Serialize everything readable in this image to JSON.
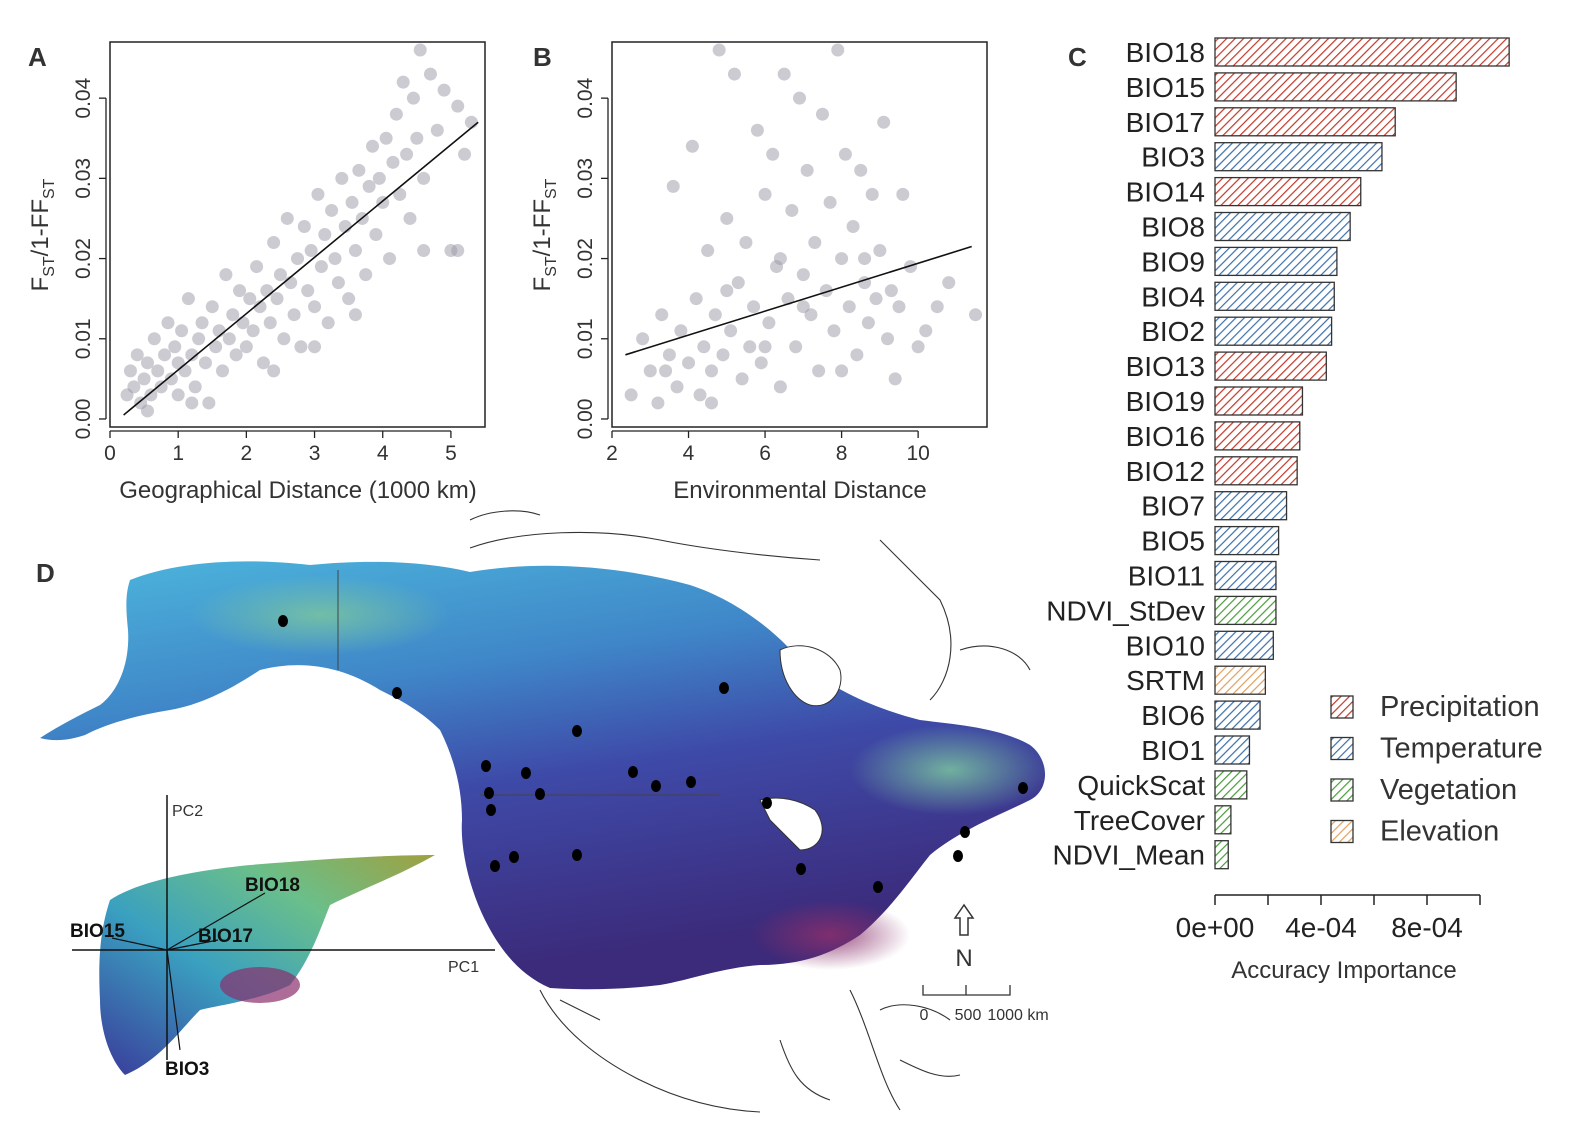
{
  "panel_labels": {
    "a": "A",
    "b": "B",
    "c": "C",
    "d": "D"
  },
  "colors": {
    "precipitation": "#c0392b",
    "temperature": "#3d6fa8",
    "vegetation": "#4a9a3a",
    "elevation": "#e0a060",
    "points": "#9a98a6",
    "map_cool": "#4aa8d8",
    "map_mid": "#3a4fa0",
    "map_warm": "#7a3070"
  },
  "chart_data": [
    {
      "type": "scatter",
      "xlabel": "Geographical Distance (1000 km)",
      "ylabel_main": "F",
      "ylabel_sub": "ST",
      "ylabel_mid": "/1-F",
      "xlim": [
        0,
        5.5
      ],
      "ylim": [
        -0.001,
        0.047
      ],
      "xticks": [
        0,
        1,
        2,
        3,
        4,
        5
      ],
      "yticks": [
        0.0,
        0.01,
        0.02,
        0.03,
        0.04
      ],
      "ytick_labels": [
        "0.00",
        "0.01",
        "0.02",
        "0.03",
        "0.04"
      ],
      "fit": {
        "x": [
          0.2,
          5.4
        ],
        "y": [
          0.0005,
          0.037
        ]
      },
      "points": [
        [
          0.25,
          0.003
        ],
        [
          0.3,
          0.006
        ],
        [
          0.35,
          0.004
        ],
        [
          0.4,
          0.008
        ],
        [
          0.45,
          0.002
        ],
        [
          0.5,
          0.005
        ],
        [
          0.55,
          0.007
        ],
        [
          0.6,
          0.003
        ],
        [
          0.65,
          0.01
        ],
        [
          0.7,
          0.006
        ],
        [
          0.75,
          0.004
        ],
        [
          0.8,
          0.008
        ],
        [
          0.85,
          0.012
        ],
        [
          0.9,
          0.005
        ],
        [
          0.95,
          0.009
        ],
        [
          1.0,
          0.007
        ],
        [
          1.0,
          0.003
        ],
        [
          1.05,
          0.011
        ],
        [
          1.1,
          0.006
        ],
        [
          1.15,
          0.015
        ],
        [
          1.2,
          0.008
        ],
        [
          1.25,
          0.004
        ],
        [
          1.3,
          0.01
        ],
        [
          1.35,
          0.012
        ],
        [
          1.4,
          0.007
        ],
        [
          1.45,
          0.002
        ],
        [
          1.5,
          0.014
        ],
        [
          1.55,
          0.009
        ],
        [
          1.6,
          0.011
        ],
        [
          1.65,
          0.006
        ],
        [
          1.7,
          0.018
        ],
        [
          1.75,
          0.01
        ],
        [
          1.8,
          0.013
        ],
        [
          1.85,
          0.008
        ],
        [
          1.9,
          0.016
        ],
        [
          1.95,
          0.012
        ],
        [
          2.0,
          0.009
        ],
        [
          2.05,
          0.015
        ],
        [
          2.1,
          0.011
        ],
        [
          2.15,
          0.019
        ],
        [
          2.2,
          0.014
        ],
        [
          2.25,
          0.007
        ],
        [
          2.3,
          0.016
        ],
        [
          2.35,
          0.012
        ],
        [
          2.4,
          0.022
        ],
        [
          2.45,
          0.015
        ],
        [
          2.5,
          0.018
        ],
        [
          2.55,
          0.01
        ],
        [
          2.6,
          0.025
        ],
        [
          2.65,
          0.017
        ],
        [
          2.7,
          0.013
        ],
        [
          2.75,
          0.02
        ],
        [
          2.8,
          0.009
        ],
        [
          2.85,
          0.024
        ],
        [
          2.9,
          0.016
        ],
        [
          2.95,
          0.021
        ],
        [
          3.0,
          0.014
        ],
        [
          3.05,
          0.028
        ],
        [
          3.1,
          0.019
        ],
        [
          3.15,
          0.023
        ],
        [
          3.2,
          0.012
        ],
        [
          3.25,
          0.026
        ],
        [
          3.3,
          0.02
        ],
        [
          3.35,
          0.017
        ],
        [
          3.4,
          0.03
        ],
        [
          3.45,
          0.024
        ],
        [
          3.5,
          0.015
        ],
        [
          3.55,
          0.027
        ],
        [
          3.6,
          0.021
        ],
        [
          3.65,
          0.031
        ],
        [
          3.7,
          0.025
        ],
        [
          3.75,
          0.018
        ],
        [
          3.8,
          0.029
        ],
        [
          3.85,
          0.034
        ],
        [
          3.9,
          0.023
        ],
        [
          3.95,
          0.03
        ],
        [
          4.0,
          0.027
        ],
        [
          4.05,
          0.035
        ],
        [
          4.1,
          0.02
        ],
        [
          4.15,
          0.032
        ],
        [
          4.2,
          0.038
        ],
        [
          4.25,
          0.028
        ],
        [
          4.3,
          0.042
        ],
        [
          4.35,
          0.033
        ],
        [
          4.4,
          0.025
        ],
        [
          4.45,
          0.04
        ],
        [
          4.5,
          0.035
        ],
        [
          4.55,
          0.046
        ],
        [
          4.6,
          0.03
        ],
        [
          4.7,
          0.043
        ],
        [
          4.8,
          0.036
        ],
        [
          4.9,
          0.041
        ],
        [
          5.0,
          0.021
        ],
        [
          5.1,
          0.039
        ],
        [
          5.2,
          0.033
        ],
        [
          5.3,
          0.037
        ],
        [
          0.55,
          0.001
        ],
        [
          1.2,
          0.002
        ],
        [
          2.4,
          0.006
        ],
        [
          3.0,
          0.009
        ],
        [
          3.6,
          0.013
        ],
        [
          4.6,
          0.021
        ],
        [
          5.1,
          0.021
        ]
      ]
    },
    {
      "type": "scatter",
      "xlabel": "Environmental Distance",
      "ylabel_main": "F",
      "ylabel_sub": "ST",
      "ylabel_mid": "/1-F",
      "xlim": [
        2,
        11.8
      ],
      "ylim": [
        -0.001,
        0.047
      ],
      "xticks": [
        2,
        4,
        6,
        8,
        10
      ],
      "yticks": [
        0.0,
        0.01,
        0.02,
        0.03,
        0.04
      ],
      "ytick_labels": [
        "0.00",
        "0.01",
        "0.02",
        "0.03",
        "0.04"
      ],
      "fit": {
        "x": [
          2.35,
          11.4
        ],
        "y": [
          0.008,
          0.0215
        ]
      },
      "points": [
        [
          2.5,
          0.003
        ],
        [
          2.8,
          0.01
        ],
        [
          3.0,
          0.006
        ],
        [
          3.2,
          0.002
        ],
        [
          3.3,
          0.013
        ],
        [
          3.5,
          0.008
        ],
        [
          3.6,
          0.029
        ],
        [
          3.7,
          0.004
        ],
        [
          3.8,
          0.011
        ],
        [
          4.0,
          0.007
        ],
        [
          4.1,
          0.034
        ],
        [
          4.2,
          0.015
        ],
        [
          4.3,
          0.003
        ],
        [
          4.4,
          0.009
        ],
        [
          4.5,
          0.021
        ],
        [
          4.6,
          0.006
        ],
        [
          4.7,
          0.013
        ],
        [
          4.8,
          0.046
        ],
        [
          4.9,
          0.008
        ],
        [
          5.0,
          0.025
        ],
        [
          5.1,
          0.011
        ],
        [
          5.2,
          0.043
        ],
        [
          5.3,
          0.017
        ],
        [
          5.4,
          0.005
        ],
        [
          5.5,
          0.022
        ],
        [
          5.6,
          0.009
        ],
        [
          5.7,
          0.014
        ],
        [
          5.8,
          0.036
        ],
        [
          5.9,
          0.007
        ],
        [
          6.0,
          0.028
        ],
        [
          6.1,
          0.012
        ],
        [
          6.2,
          0.033
        ],
        [
          6.3,
          0.019
        ],
        [
          6.4,
          0.004
        ],
        [
          6.5,
          0.043
        ],
        [
          6.6,
          0.015
        ],
        [
          6.7,
          0.026
        ],
        [
          6.8,
          0.009
        ],
        [
          6.9,
          0.04
        ],
        [
          7.0,
          0.018
        ],
        [
          7.1,
          0.031
        ],
        [
          7.2,
          0.013
        ],
        [
          7.3,
          0.022
        ],
        [
          7.4,
          0.006
        ],
        [
          7.5,
          0.038
        ],
        [
          7.6,
          0.016
        ],
        [
          7.7,
          0.027
        ],
        [
          7.8,
          0.011
        ],
        [
          7.9,
          0.046
        ],
        [
          8.0,
          0.02
        ],
        [
          8.1,
          0.033
        ],
        [
          8.2,
          0.014
        ],
        [
          8.3,
          0.024
        ],
        [
          8.4,
          0.008
        ],
        [
          8.5,
          0.031
        ],
        [
          8.6,
          0.017
        ],
        [
          8.7,
          0.012
        ],
        [
          8.8,
          0.028
        ],
        [
          8.9,
          0.015
        ],
        [
          9.0,
          0.021
        ],
        [
          9.1,
          0.037
        ],
        [
          9.2,
          0.01
        ],
        [
          9.3,
          0.016
        ],
        [
          9.4,
          0.005
        ],
        [
          9.5,
          0.014
        ],
        [
          9.6,
          0.028
        ],
        [
          9.8,
          0.019
        ],
        [
          10.0,
          0.009
        ],
        [
          10.2,
          0.011
        ],
        [
          10.5,
          0.014
        ],
        [
          10.8,
          0.017
        ],
        [
          11.5,
          0.013
        ],
        [
          5.0,
          0.016
        ],
        [
          6.0,
          0.009
        ],
        [
          7.0,
          0.014
        ],
        [
          8.0,
          0.006
        ],
        [
          8.6,
          0.02
        ],
        [
          6.4,
          0.02
        ],
        [
          4.6,
          0.002
        ],
        [
          3.4,
          0.006
        ]
      ]
    },
    {
      "type": "bar",
      "orientation": "horizontal",
      "xlabel": "Accuracy Importance",
      "xlim": [
        0,
        0.0011
      ],
      "xticks": [
        0,
        0.0002,
        0.0004,
        0.0006,
        0.0008,
        0.001
      ],
      "xtick_labels": [
        "0e+00",
        "4e-04",
        "8e-04"
      ],
      "xtick_label_values": [
        0,
        0.0004,
        0.0008
      ],
      "categories": [
        "BIO18",
        "BIO15",
        "BIO17",
        "BIO3",
        "BIO14",
        "BIO8",
        "BIO9",
        "BIO4",
        "BIO2",
        "BIO13",
        "BIO19",
        "BIO16",
        "BIO12",
        "BIO7",
        "BIO5",
        "BIO11",
        "NDVI_StDev",
        "BIO10",
        "SRTM",
        "BIO6",
        "BIO1",
        "QuickScat",
        "TreeCover",
        "NDVI_Mean"
      ],
      "values": [
        0.00111,
        0.00091,
        0.00068,
        0.00063,
        0.00055,
        0.00051,
        0.00046,
        0.00045,
        0.00044,
        0.00042,
        0.00033,
        0.00032,
        0.00031,
        0.00027,
        0.00024,
        0.00023,
        0.00023,
        0.00022,
        0.00019,
        0.00017,
        0.00013,
        0.00012,
        6e-05,
        5e-05
      ],
      "groups": [
        "precipitation",
        "precipitation",
        "precipitation",
        "temperature",
        "precipitation",
        "temperature",
        "temperature",
        "temperature",
        "temperature",
        "precipitation",
        "precipitation",
        "precipitation",
        "precipitation",
        "temperature",
        "temperature",
        "temperature",
        "vegetation",
        "temperature",
        "elevation",
        "temperature",
        "temperature",
        "vegetation",
        "vegetation",
        "vegetation"
      ],
      "legend": [
        {
          "key": "precipitation",
          "label": "Precipitation"
        },
        {
          "key": "temperature",
          "label": "Temperature"
        },
        {
          "key": "vegetation",
          "label": "Vegetation"
        },
        {
          "key": "elevation",
          "label": "Elevation"
        }
      ]
    }
  ],
  "map": {
    "pca_labels": {
      "pc1": "PC1",
      "pc2": "PC2"
    },
    "pca_vectors": [
      {
        "label": "BIO18"
      },
      {
        "label": "BIO15"
      },
      {
        "label": "BIO17"
      },
      {
        "label": "BIO3"
      }
    ],
    "north_label": "N",
    "scale_labels": [
      "0",
      "500",
      "1000 km"
    ]
  }
}
